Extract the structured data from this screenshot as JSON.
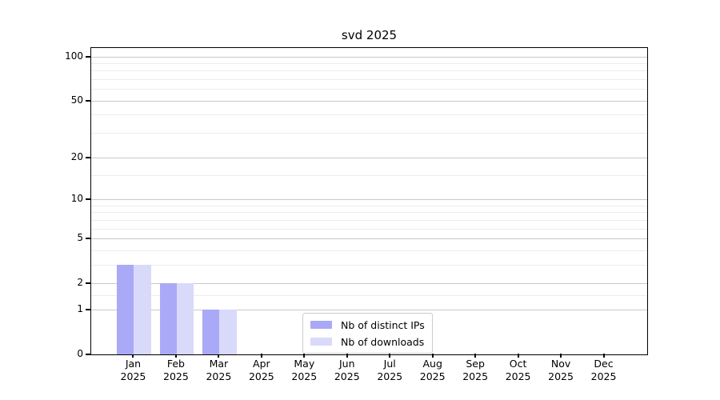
{
  "window": {
    "title": "svd 2025"
  },
  "chart_data": {
    "type": "bar",
    "title": "svd 2025",
    "categories": [
      "Jan",
      "Feb",
      "Mar",
      "Apr",
      "May",
      "Jun",
      "Jul",
      "Aug",
      "Sep",
      "Oct",
      "Nov",
      "Dec"
    ],
    "x_tick_year_line": "2025",
    "series": [
      {
        "name": "Nb of distinct IPs",
        "color": "#a9a9f7",
        "values": [
          3,
          2,
          1,
          0,
          0,
          0,
          0,
          0,
          0,
          0,
          0,
          0
        ]
      },
      {
        "name": "Nb of downloads",
        "color": "#d9d9fa",
        "values": [
          3,
          2,
          1,
          0,
          0,
          0,
          0,
          0,
          0,
          0,
          0,
          0
        ]
      }
    ],
    "xlabel": "",
    "ylabel": "",
    "y_scale": "log1p",
    "y_major_ticks": [
      0,
      1,
      2,
      5,
      10,
      20,
      50,
      100
    ],
    "y_minor_gridlines": [
      1.5,
      3,
      4,
      6,
      7,
      8,
      9,
      15,
      30,
      40,
      60,
      70,
      80,
      90
    ],
    "xlim": [
      -1,
      12
    ],
    "ylim": [
      0,
      115
    ],
    "bar_width_units": 0.4,
    "grid": true,
    "legend_position": "inside-bottom-center"
  },
  "colors": {
    "grid_major": "#c9c9c9",
    "grid_minor": "#ececec",
    "spine": "#000000",
    "text": "#000000",
    "background": "#ffffff"
  }
}
